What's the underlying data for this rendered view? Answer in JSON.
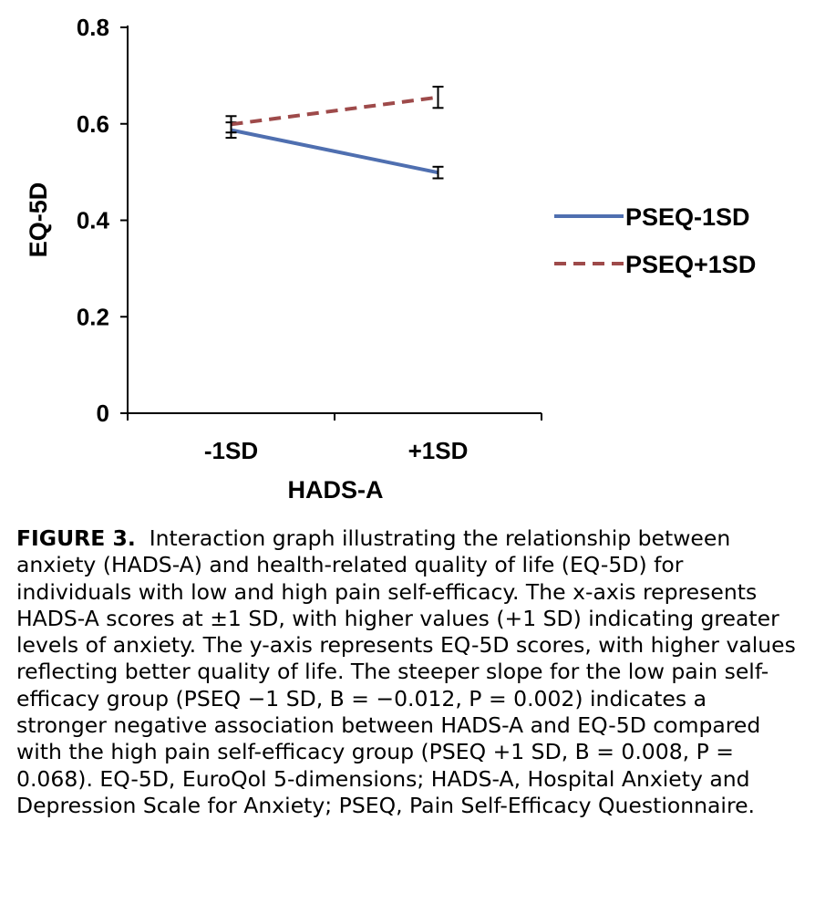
{
  "chart_data": {
    "type": "line",
    "categories": [
      "-1SD",
      "+1SD"
    ],
    "xlabel": "HADS-A",
    "ylabel": "EQ-5D",
    "ylim": [
      0,
      0.8
    ],
    "yticks": [
      "0",
      "0.2",
      "0.4",
      "0.6",
      "0.8"
    ],
    "grid": false,
    "legend_position": "right",
    "series": [
      {
        "name": "PSEQ-1SD",
        "values": [
          0.587,
          0.499
        ],
        "errors": [
          0.016,
          0.012
        ],
        "color": "#4F6FB0",
        "style": "solid"
      },
      {
        "name": "PSEQ+1SD",
        "values": [
          0.599,
          0.655
        ],
        "errors": [
          0.017,
          0.022
        ],
        "color": "#9E4A4A",
        "style": "dashed"
      }
    ]
  },
  "caption": {
    "lead": "FIGURE 3.",
    "text": "Interaction graph illustrating the relationship between anxiety (HADS-A) and health-related quality of life (EQ-5D) for individuals with low and high pain self-efficacy. The x-axis represents HADS-A scores at ±1 SD, with higher values (+1 SD) indicating greater levels of anxiety. The y-axis represents EQ-5D scores, with higher values reflecting better quality of life. The steeper slope for the low pain self-efficacy group (PSEQ −1 SD, B = −0.012, P = 0.002) indicates a stronger negative association between HADS-A and EQ-5D compared with the high pain self-efficacy group (PSEQ +1 SD, B = 0.008, P = 0.068). EQ-5D, EuroQol 5-dimensions; HADS-A, Hospital Anxiety and Depression Scale for Anxiety; PSEQ, Pain Self-Efficacy Questionnaire."
  }
}
